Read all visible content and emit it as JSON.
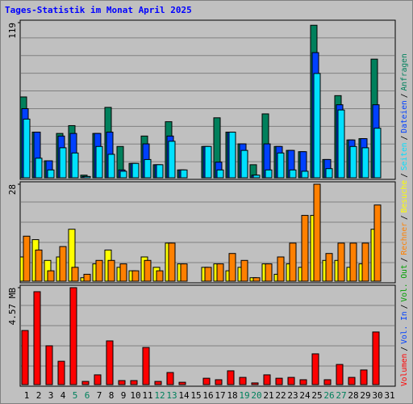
{
  "chart_data": {
    "type": "bar",
    "title": "Tages-Statistik im Monat April 2025",
    "categories": [
      "1",
      "2",
      "3",
      "4",
      "5",
      "6",
      "7",
      "8",
      "9",
      "10",
      "11",
      "12",
      "13",
      "14",
      "15",
      "16",
      "17",
      "18",
      "19",
      "20",
      "21",
      "22",
      "23",
      "24",
      "25",
      "26",
      "27",
      "28",
      "29",
      "30",
      "31"
    ],
    "category_colors": [
      "#000000",
      "#000000",
      "#000000",
      "#000000",
      "#00805c",
      "#00805c",
      "#000000",
      "#000000",
      "#000000",
      "#000000",
      "#000000",
      "#00805c",
      "#00805c",
      "#000000",
      "#000000",
      "#000000",
      "#000000",
      "#000000",
      "#00805c",
      "#00805c",
      "#000000",
      "#000000",
      "#000000",
      "#000000",
      "#000000",
      "#00805c",
      "#00805c",
      "#000000",
      "#000000",
      "#000000",
      "#000000"
    ],
    "legend_separator": "/",
    "panels": [
      {
        "ylim": [
          0,
          119
        ],
        "yticks": [
          119
        ],
        "series": [
          {
            "name": "Anfragen",
            "color": "#00805c",
            "values": [
              62,
              35,
              13,
              34,
              40,
              2,
              34,
              54,
              24,
              11,
              32,
              10,
              43,
              6,
              0,
              24,
              46,
              35,
              26,
              10,
              49,
              24,
              21,
              20,
              117,
              14,
              63,
              29,
              30,
              91,
              0
            ]
          },
          {
            "name": "Dateien",
            "color": "#0040ff",
            "values": [
              53,
              35,
              13,
              32,
              34,
              1,
              34,
              35,
              6,
              11,
              26,
              10,
              32,
              6,
              0,
              24,
              12,
              35,
              26,
              2,
              26,
              24,
              21,
              20,
              96,
              14,
              56,
              29,
              30,
              56,
              0
            ]
          },
          {
            "name": "Seiten",
            "color": "#00e0ff",
            "values": [
              45,
              15,
              6,
              23,
              19,
              1,
              24,
              18,
              5,
              11,
              14,
              10,
              28,
              6,
              0,
              24,
              6,
              35,
              21,
              2,
              6,
              19,
              6,
              5,
              80,
              7,
              52,
              24,
              23,
              38,
              0
            ]
          }
        ]
      },
      {
        "ylim": [
          0,
          28
        ],
        "yticks": [
          28
        ],
        "series": [
          {
            "name": "Besuche",
            "color": "#ffff00",
            "values": [
              7,
              12,
              6,
              7,
              15,
              1,
              5,
              9,
              4,
              3,
              7,
              4,
              11,
              5,
              0,
              4,
              5,
              3,
              4,
              1,
              5,
              2,
              5,
              4,
              19,
              6,
              6,
              4,
              5,
              15,
              0
            ]
          },
          {
            "name": "Rechner",
            "color": "#ff8000",
            "values": [
              13,
              9,
              3,
              10,
              4,
              2,
              6,
              6,
              5,
              3,
              6,
              3,
              11,
              5,
              0,
              4,
              5,
              8,
              6,
              1,
              5,
              7,
              11,
              19,
              28,
              8,
              11,
              11,
              11,
              22,
              0
            ]
          }
        ]
      },
      {
        "ylim": [
          0,
          4.57
        ],
        "yticks": [
          {
            "value": 4.57,
            "label": "4.57 MB"
          }
        ],
        "series": [
          {
            "name": "Volumen",
            "color": "#ff0000",
            "values": [
              2.55,
              4.38,
              1.83,
              1.1,
              4.57,
              0.15,
              0.46,
              2.06,
              0.19,
              0.19,
              1.75,
              0.15,
              0.57,
              0.11,
              0,
              0.3,
              0.23,
              0.65,
              0.34,
              0.08,
              0.46,
              0.3,
              0.34,
              0.23,
              1.45,
              0.23,
              0.95,
              0.34,
              0.69,
              2.48,
              0
            ]
          }
        ],
        "extra_legend": [
          {
            "name": "Vol. In",
            "color": "#0040ff"
          },
          {
            "name": "Vol. Out",
            "color": "#00a000"
          }
        ]
      }
    ]
  }
}
